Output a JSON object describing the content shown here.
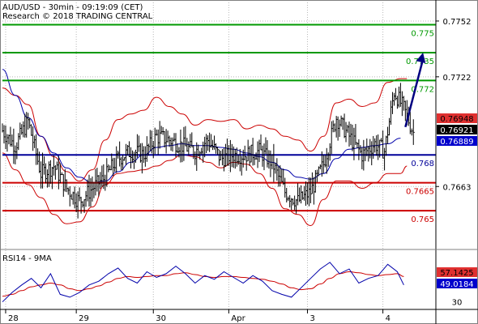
{
  "chart_data": {
    "type": "line",
    "title": "AUD/USD - 30min - 09:19:09 (CET)",
    "subtitle": "Research © 2018 TRADING CENTRAL",
    "ylim": [
      0.763,
      0.7762
    ],
    "y_ticks": [
      {
        "label": "0.7752",
        "value": 0.7752
      },
      {
        "label": "0.7722",
        "value": 0.7722
      },
      {
        "label": "0.7663",
        "value": 0.7663
      }
    ],
    "x_ticks": [
      {
        "label": "28",
        "value": 2
      },
      {
        "label": "29",
        "value": 46
      },
      {
        "label": "30",
        "value": 94
      },
      {
        "label": "Apr",
        "value": 141
      },
      {
        "label": "3",
        "value": 190
      },
      {
        "label": "4",
        "value": 237
      }
    ],
    "xlim": [
      0,
      270
    ],
    "levels": [
      {
        "label": "0.775",
        "value": 0.775,
        "color": "#009900"
      },
      {
        "label": "0.7735",
        "value": 0.7735,
        "color": "#009900"
      },
      {
        "label": "0.772",
        "value": 0.772,
        "color": "#009900"
      },
      {
        "label": "0.768",
        "value": 0.768,
        "color": "#000099"
      },
      {
        "label": "0.7665",
        "value": 0.7665,
        "color": "#cc0000"
      },
      {
        "label": "0.765",
        "value": 0.765,
        "color": "#cc0000"
      }
    ],
    "price_tags": [
      {
        "label": "0.76948",
        "value": 0.76948,
        "bg": "#e03030",
        "fg": "#000000"
      },
      {
        "label": "0.76921",
        "value": 0.76921,
        "bg": "#000000",
        "fg": "#ffffff"
      },
      {
        "label": "0.76889",
        "value": 0.76889,
        "bg": "#0000cc",
        "fg": "#ffffff"
      }
    ],
    "price": {
      "x": [
        0,
        8,
        16,
        24,
        32,
        40,
        48,
        56,
        64,
        72,
        80,
        88,
        96,
        104,
        112,
        120,
        128,
        136,
        144,
        152,
        160,
        168,
        176,
        184,
        192,
        200,
        208,
        216,
        224,
        232,
        238,
        244,
        250,
        256
      ],
      "y": [
        0.7693,
        0.7685,
        0.7698,
        0.767,
        0.7674,
        0.7662,
        0.7655,
        0.7662,
        0.7668,
        0.7678,
        0.7682,
        0.768,
        0.769,
        0.7688,
        0.7685,
        0.7682,
        0.7688,
        0.7678,
        0.768,
        0.768,
        0.7682,
        0.7676,
        0.766,
        0.7655,
        0.766,
        0.7675,
        0.77,
        0.769,
        0.768,
        0.7686,
        0.7682,
        0.7714,
        0.7705,
        0.7692
      ]
    },
    "ma": {
      "x": [
        0,
        8,
        16,
        24,
        32,
        40,
        48,
        56,
        64,
        72,
        80,
        88,
        96,
        104,
        112,
        120,
        128,
        136,
        144,
        152,
        160,
        168,
        176,
        184,
        192,
        200,
        208,
        216,
        224,
        232,
        240,
        248
      ],
      "y": [
        0.7726,
        0.7712,
        0.77,
        0.769,
        0.7681,
        0.7673,
        0.7668,
        0.7665,
        0.7666,
        0.7671,
        0.7676,
        0.768,
        0.7684,
        0.7685,
        0.7686,
        0.7685,
        0.7685,
        0.7684,
        0.7683,
        0.7681,
        0.7679,
        0.7676,
        0.7672,
        0.7668,
        0.7667,
        0.767,
        0.7678,
        0.7683,
        0.7684,
        0.7685,
        0.7686,
        0.7689
      ]
    },
    "bb_upper": {
      "x": [
        0,
        8,
        16,
        24,
        32,
        40,
        48,
        56,
        64,
        72,
        80,
        88,
        96,
        104,
        112,
        120,
        128,
        136,
        144,
        152,
        160,
        168,
        176,
        184,
        192,
        200,
        208,
        216,
        224,
        232,
        240,
        248,
        252
      ],
      "y": [
        0.7716,
        0.7712,
        0.7707,
        0.769,
        0.7679,
        0.7671,
        0.7666,
        0.7672,
        0.7688,
        0.7699,
        0.7702,
        0.7704,
        0.7711,
        0.7706,
        0.7702,
        0.7696,
        0.7699,
        0.7698,
        0.7699,
        0.7694,
        0.7696,
        0.7694,
        0.769,
        0.7688,
        0.7682,
        0.769,
        0.7708,
        0.771,
        0.7706,
        0.7708,
        0.7719,
        0.7721,
        0.7721
      ]
    },
    "bb_lower": {
      "x": [
        0,
        8,
        16,
        24,
        32,
        40,
        48,
        56,
        64,
        72,
        80,
        88,
        96,
        104,
        112,
        120,
        128,
        136,
        144,
        152,
        160,
        168,
        176,
        184,
        192,
        200,
        208,
        216,
        224,
        232,
        240,
        248,
        252
      ],
      "y": [
        0.7681,
        0.7672,
        0.7664,
        0.7657,
        0.7648,
        0.7643,
        0.7644,
        0.7652,
        0.7664,
        0.767,
        0.7671,
        0.7672,
        0.7674,
        0.7677,
        0.768,
        0.7679,
        0.7676,
        0.7673,
        0.7676,
        0.7675,
        0.767,
        0.7662,
        0.7651,
        0.7648,
        0.7642,
        0.7656,
        0.7666,
        0.7666,
        0.7662,
        0.7665,
        0.767,
        0.767,
        0.7674
      ]
    },
    "forecast_arrow": {
      "from": [
        251,
        0.7695
      ],
      "to": [
        262,
        0.7735
      ],
      "color": "#000080"
    },
    "rsi": {
      "title": "RSI14 - 9MA",
      "ylim": [
        22,
        84
      ],
      "y_ticks": [
        {
          "label": "30",
          "value": 30
        }
      ],
      "tags": [
        {
          "label": "57.1425",
          "value": 57.1425,
          "bg": "#e03030",
          "fg": "#000000"
        },
        {
          "label": "49.0184",
          "value": 49.0184,
          "bg": "#0000cc",
          "fg": "#ffffff"
        }
      ],
      "rsi_line": {
        "x": [
          0,
          6,
          12,
          18,
          24,
          30,
          36,
          42,
          48,
          54,
          60,
          66,
          72,
          78,
          84,
          90,
          96,
          102,
          108,
          114,
          120,
          126,
          132,
          138,
          144,
          150,
          156,
          162,
          168,
          174,
          180,
          186,
          192,
          198,
          204,
          210,
          216,
          222,
          228,
          234,
          240,
          246,
          250
        ],
        "y": [
          30,
          40,
          48,
          55,
          45,
          60,
          38,
          35,
          40,
          48,
          52,
          60,
          66,
          55,
          50,
          62,
          56,
          60,
          68,
          60,
          50,
          58,
          54,
          62,
          56,
          50,
          58,
          52,
          42,
          38,
          35,
          45,
          55,
          65,
          72,
          60,
          65,
          50,
          55,
          58,
          70,
          62,
          48
        ]
      },
      "ma_line": {
        "x": [
          0,
          6,
          12,
          18,
          24,
          30,
          36,
          42,
          48,
          54,
          60,
          66,
          72,
          78,
          84,
          90,
          96,
          102,
          108,
          114,
          120,
          126,
          132,
          138,
          144,
          150,
          156,
          162,
          168,
          174,
          180,
          186,
          192,
          198,
          204,
          210,
          216,
          222,
          228,
          234,
          240,
          246,
          250
        ],
        "y": [
          36,
          38,
          42,
          46,
          48,
          50,
          48,
          44,
          42,
          44,
          47,
          51,
          55,
          57,
          56,
          57,
          58,
          58,
          60,
          61,
          59,
          57,
          56,
          57,
          57,
          56,
          55,
          54,
          52,
          49,
          45,
          43,
          44,
          49,
          55,
          60,
          62,
          61,
          59,
          58,
          59,
          60,
          57
        ]
      }
    }
  }
}
